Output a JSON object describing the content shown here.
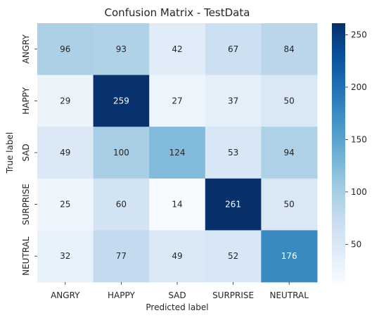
{
  "chart_data": {
    "type": "heatmap",
    "title": "Confusion Matrix - TestData",
    "xlabel": "Predicted label",
    "ylabel": "True label",
    "x_categories": [
      "ANGRY",
      "HAPPY",
      "SAD",
      "SURPRISE",
      "NEUTRAL"
    ],
    "y_categories": [
      "ANGRY",
      "HAPPY",
      "SAD",
      "SURPRISE",
      "NEUTRAL"
    ],
    "values": [
      [
        96,
        93,
        42,
        67,
        84
      ],
      [
        29,
        259,
        27,
        37,
        50
      ],
      [
        49,
        100,
        124,
        53,
        94
      ],
      [
        25,
        60,
        14,
        261,
        50
      ],
      [
        32,
        77,
        49,
        52,
        176
      ]
    ],
    "colorbar": {
      "min": 14,
      "max": 261,
      "ticks": [
        50,
        100,
        150,
        200,
        250
      ],
      "colormap": "Blues"
    }
  }
}
